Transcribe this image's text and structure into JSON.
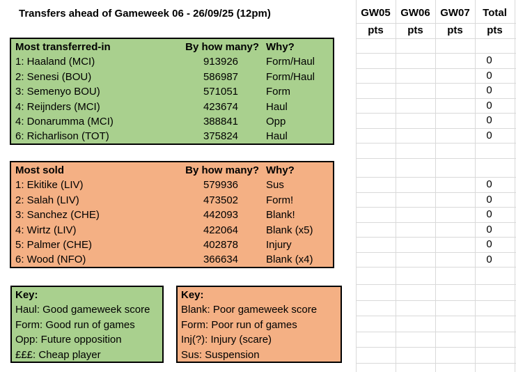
{
  "title": "Transfers ahead of Gameweek 06 - 26/09/25 (12pm)",
  "points_grid": {
    "columns": [
      {
        "label": "GW05",
        "sub": "pts"
      },
      {
        "label": "GW06",
        "sub": "pts"
      },
      {
        "label": "GW07",
        "sub": "pts"
      },
      {
        "label": "Total",
        "sub": "pts"
      }
    ],
    "total_values": [
      "0",
      "0",
      "0",
      "0",
      "0",
      "0",
      "0",
      "0",
      "0",
      "0",
      "0",
      "0"
    ]
  },
  "transfers_in": {
    "title": "Most transferred-in",
    "col_count": "By how many?",
    "col_why": "Why?",
    "rows": [
      {
        "name": "1: Haaland (MCI)",
        "count": "913926",
        "why": "Form/Haul"
      },
      {
        "name": "2: Senesi (BOU)",
        "count": "586987",
        "why": "Form/Haul"
      },
      {
        "name": "3: Semenyo BOU)",
        "count": "571051",
        "why": "Form"
      },
      {
        "name": "4: Reijnders (MCI)",
        "count": "423674",
        "why": "Haul"
      },
      {
        "name": "4: Donarumma (MCI)",
        "count": "388841",
        "why": "Opp"
      },
      {
        "name": "6: Richarlison (TOT)",
        "count": "375824",
        "why": "Haul"
      }
    ]
  },
  "transfers_out": {
    "title": "Most sold",
    "col_count": "By how many?",
    "col_why": "Why?",
    "rows": [
      {
        "name": "1: Ekitike (LIV)",
        "count": "579936",
        "why": "Sus"
      },
      {
        "name": "2: Salah (LIV)",
        "count": "473502",
        "why": "Form!"
      },
      {
        "name": "3: Sanchez (CHE)",
        "count": "442093",
        "why": "Blank!"
      },
      {
        "name": "4: Wirtz (LIV)",
        "count": "422064",
        "why": "Blank (x5)"
      },
      {
        "name": "5: Palmer (CHE)",
        "count": "402878",
        "why": "Injury"
      },
      {
        "name": "6: Wood (NFO)",
        "count": "366634",
        "why": "Blank (x4)"
      }
    ]
  },
  "key_in": {
    "title": "Key:",
    "lines": [
      "Haul: Good gameweek score",
      "Form: Good run of games",
      "Opp: Future opposition",
      "£££: Cheap player"
    ]
  },
  "key_out": {
    "title": "Key:",
    "lines": [
      "Blank: Poor gameweek score",
      "Form: Poor run of games",
      "Inj(?): Injury (scare)",
      "Sus: Suspension"
    ]
  },
  "colors": {
    "green_fill": "#A9D08E",
    "orange_fill": "#F4B084",
    "gridline": "#D9D9D9",
    "border": "#000000",
    "text": "#000000"
  }
}
